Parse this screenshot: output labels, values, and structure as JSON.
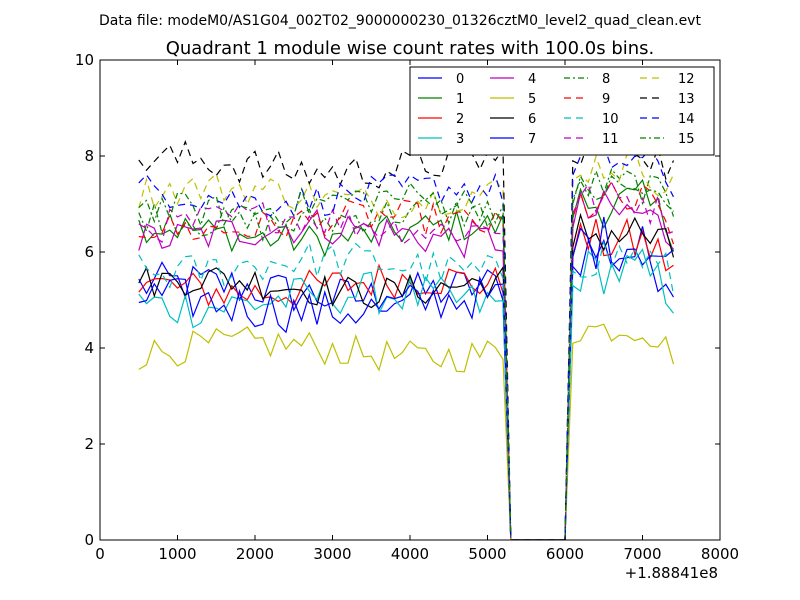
{
  "figure": {
    "suptitle": "Data file: modeM0/AS1G04_002T02_9000000230_01326cztM0_level2_quad_clean.evt",
    "title": "Quadrant 1 module wise count rates with 100.0s bins.",
    "x_offset_label": "+1.88841e8"
  },
  "chart_data": {
    "type": "line",
    "title": "Quadrant 1 module wise count rates with 100.0s bins.",
    "xlabel": "",
    "ylabel": "",
    "xlim": [
      0,
      8000
    ],
    "ylim": [
      0,
      10
    ],
    "x_offset": 188841000,
    "xticks": [
      0,
      1000,
      2000,
      3000,
      4000,
      5000,
      6000,
      7000,
      8000
    ],
    "xtick_labels": [
      "0",
      "1000",
      "2000",
      "3000",
      "4000",
      "5000",
      "6000",
      "7000",
      "8000"
    ],
    "yticks": [
      0,
      2,
      4,
      6,
      8,
      10
    ],
    "ytick_labels": [
      "0",
      "2",
      "4",
      "6",
      "8",
      "10"
    ],
    "grid": false,
    "legend": {
      "placement": "top-right",
      "columns": 4
    },
    "x": {
      "segment1_start": 500,
      "segment1_end": 5200,
      "step": 100,
      "gap_points": [
        5300,
        5400,
        5500,
        5600,
        5700,
        5800,
        5900,
        6000
      ],
      "segment2_start": 6100,
      "segment2_end": 7400
    },
    "series": [
      {
        "name": "0",
        "color": "#0000ff",
        "dash": "solid",
        "base1": 5.2,
        "amp1": 0.45,
        "base2": 6.0,
        "amp2": 0.6
      },
      {
        "name": "1",
        "color": "#008000",
        "dash": "solid",
        "base1": 6.4,
        "amp1": 0.35,
        "base2": 7.0,
        "amp2": 0.5
      },
      {
        "name": "2",
        "color": "#ff0000",
        "dash": "solid",
        "base1": 5.3,
        "amp1": 0.4,
        "base2": 6.2,
        "amp2": 0.5
      },
      {
        "name": "3",
        "color": "#00bfbf",
        "dash": "solid",
        "base1": 5.0,
        "amp1": 0.45,
        "base2": 5.6,
        "amp2": 0.5
      },
      {
        "name": "4",
        "color": "#bf00bf",
        "dash": "solid",
        "base1": 6.4,
        "amp1": 0.4,
        "base2": 6.8,
        "amp2": 0.5
      },
      {
        "name": "5",
        "color": "#bfbf00",
        "dash": "solid",
        "base1": 3.95,
        "amp1": 0.35,
        "base2": 4.4,
        "amp2": 0.3
      },
      {
        "name": "6",
        "color": "#000000",
        "dash": "solid",
        "base1": 5.3,
        "amp1": 0.35,
        "base2": 6.4,
        "amp2": 0.5
      },
      {
        "name": "7",
        "color": "#0000ff",
        "dash": "solid",
        "base1": 4.9,
        "amp1": 0.45,
        "base2": 6.2,
        "amp2": 0.6
      },
      {
        "name": "8",
        "color": "#008000",
        "dash": "dashdot",
        "base1": 6.7,
        "amp1": 0.35,
        "base2": 7.4,
        "amp2": 0.4
      },
      {
        "name": "9",
        "color": "#ff0000",
        "dash": "dash",
        "base1": 6.6,
        "amp1": 0.35,
        "base2": 7.0,
        "amp2": 0.5
      },
      {
        "name": "10",
        "color": "#00bfbf",
        "dash": "dash",
        "base1": 5.7,
        "amp1": 0.4,
        "base2": 5.9,
        "amp2": 0.5
      },
      {
        "name": "11",
        "color": "#bf00bf",
        "dash": "dash",
        "base1": 6.6,
        "amp1": 0.35,
        "base2": 7.1,
        "amp2": 0.4
      },
      {
        "name": "12",
        "color": "#bfbf00",
        "dash": "dash",
        "base1": 7.2,
        "amp1": 0.35,
        "base2": 7.8,
        "amp2": 0.4
      },
      {
        "name": "13",
        "color": "#000000",
        "dash": "dash",
        "base1": 7.8,
        "amp1": 0.4,
        "base2": 8.2,
        "amp2": 0.4
      },
      {
        "name": "14",
        "color": "#0000ff",
        "dash": "dash",
        "base1": 7.2,
        "amp1": 0.35,
        "base2": 7.9,
        "amp2": 0.4
      },
      {
        "name": "15",
        "color": "#008000",
        "dash": "dashdot",
        "base1": 7.0,
        "amp1": 0.35,
        "base2": 7.3,
        "amp2": 0.4
      }
    ]
  }
}
